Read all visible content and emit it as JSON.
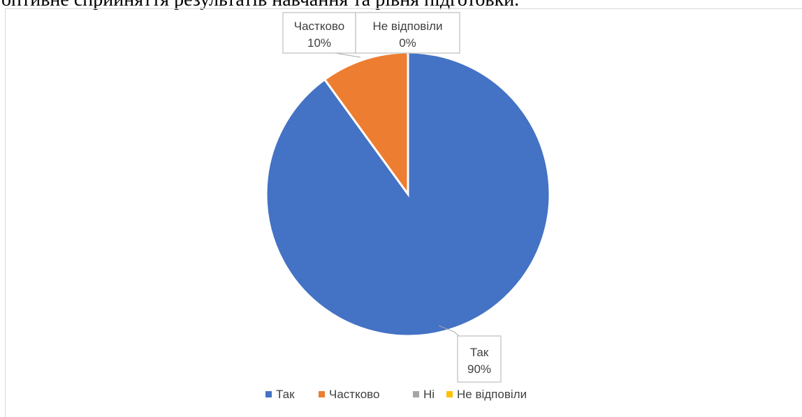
{
  "page_title": "оптивне сприйняття результатів навчання та рівня підготовки.",
  "chart_data": {
    "type": "pie",
    "title": "",
    "categories": [
      "Так",
      "Частково",
      "Ні",
      "Не відповіли"
    ],
    "values": [
      90,
      10,
      0,
      0
    ],
    "unit": "%",
    "colors": [
      "#4472c4",
      "#ed7d31",
      "#a5a5a5",
      "#ffc000"
    ],
    "data_labels": [
      {
        "category": "Так",
        "value": "90%"
      },
      {
        "category": "Частково",
        "value": "10%"
      },
      {
        "category": "Не відповіли",
        "value": "0%"
      }
    ],
    "legend_position": "bottom"
  }
}
